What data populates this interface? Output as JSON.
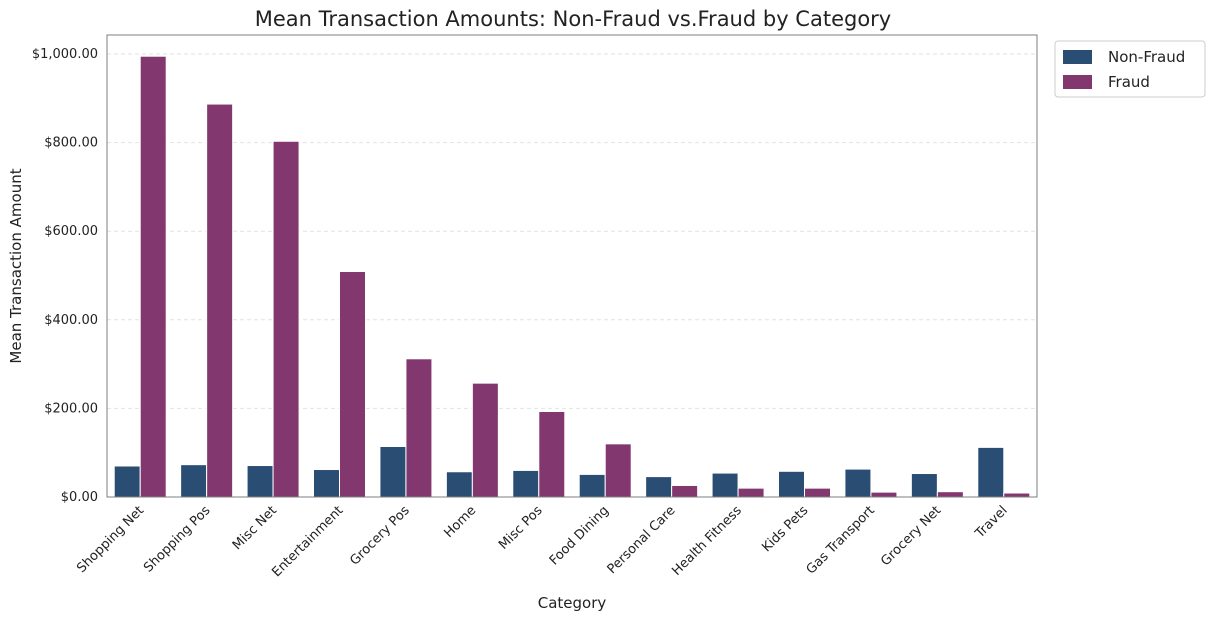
{
  "chart_data": {
    "type": "bar",
    "title": "Mean Transaction Amounts: Non-Fraud vs.Fraud by Category",
    "xlabel": "Category",
    "ylabel": "Mean Transaction Amount",
    "ylim": [
      0,
      1050
    ],
    "yticks": [
      0,
      200,
      400,
      600,
      800,
      1000
    ],
    "ytick_labels": [
      "$0.00",
      "$200.00",
      "$400.00",
      "$600.00",
      "$800.00",
      "$1,000.00"
    ],
    "grid": "horizontal dashed",
    "legend": "outside top-right",
    "categories": [
      "Shopping Net",
      "Shopping Pos",
      "Misc Net",
      "Entertainment",
      "Grocery Pos",
      "Home",
      "Misc Pos",
      "Food Dining",
      "Personal Care",
      "Health Fitness",
      "Kids Pets",
      "Gas Transport",
      "Grocery Net",
      "Travel"
    ],
    "series": [
      {
        "name": "Non-Fraud",
        "color": "#2a4d73",
        "values": [
          70,
          73,
          71,
          62,
          114,
          57,
          60,
          51,
          46,
          54,
          58,
          63,
          53,
          112
        ]
      },
      {
        "name": "Fraud",
        "color": "#83376f",
        "values": [
          995,
          887,
          803,
          509,
          312,
          257,
          193,
          120,
          26,
          20,
          20,
          11,
          12,
          9
        ]
      }
    ]
  }
}
